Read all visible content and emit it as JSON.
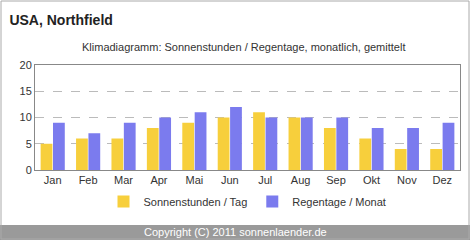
{
  "chart_data": {
    "type": "bar",
    "title": "USA, Northfield",
    "subtitle": "Klimadiagramm: Sonnenstunden / Regentage, monatlich, gemittelt",
    "footer": "Copyright (C) 2011 sonnenlaender.de",
    "categories": [
      "Jan",
      "Feb",
      "Mar",
      "Apr",
      "Mai",
      "Jun",
      "Jul",
      "Aug",
      "Sep",
      "Okt",
      "Nov",
      "Dez"
    ],
    "series": [
      {
        "name": "Sonnenstunden / Tag",
        "color": "#f7cf3c",
        "values": [
          5,
          6,
          6,
          8,
          9,
          10,
          11,
          10,
          8,
          6,
          4,
          4
        ]
      },
      {
        "name": "Regentage / Monat",
        "color": "#7b7bee",
        "values": [
          9,
          7,
          9,
          10,
          11,
          12,
          10,
          10,
          10,
          8,
          8,
          9
        ]
      }
    ],
    "ylim": [
      0,
      20
    ],
    "yticks": [
      0,
      5,
      10,
      15,
      20
    ],
    "grid": true,
    "legend": "bottom"
  }
}
